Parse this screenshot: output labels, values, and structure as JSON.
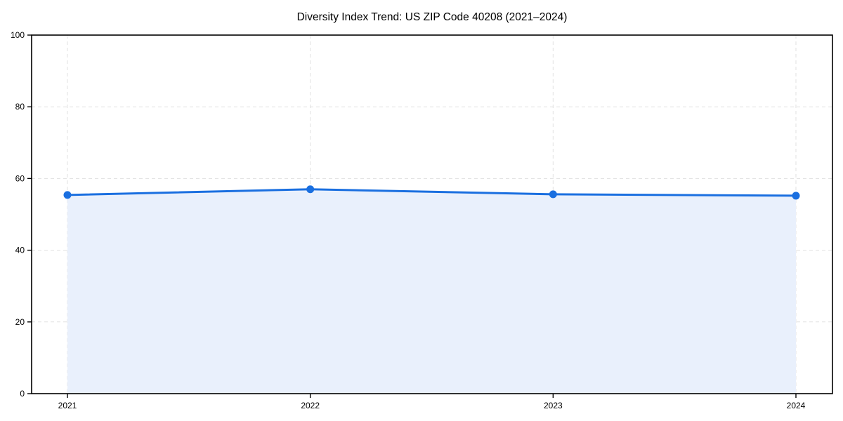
{
  "chart_data": {
    "type": "line",
    "title": "Diversity Index Trend: US ZIP Code 40208 (2021–2024)",
    "x": [
      "2021",
      "2022",
      "2023",
      "2024"
    ],
    "series": [
      {
        "name": "Diversity Index",
        "values": [
          55.4,
          57.0,
          55.6,
          55.2
        ]
      }
    ],
    "xlabel": "",
    "ylabel": "",
    "ylim": [
      0,
      100
    ],
    "yticks": [
      0,
      20,
      40,
      60,
      80,
      100
    ],
    "grid": true,
    "grid_style": "dashed",
    "area_fill": true,
    "legend_position": "none",
    "colors": {
      "line": "#1a6fe0",
      "marker": "#1a6fe0",
      "fill": "#e9f0fc",
      "grid": "#e1e1e1",
      "spine": "#000000",
      "tick_text": "#000000",
      "background": "#ffffff"
    }
  }
}
